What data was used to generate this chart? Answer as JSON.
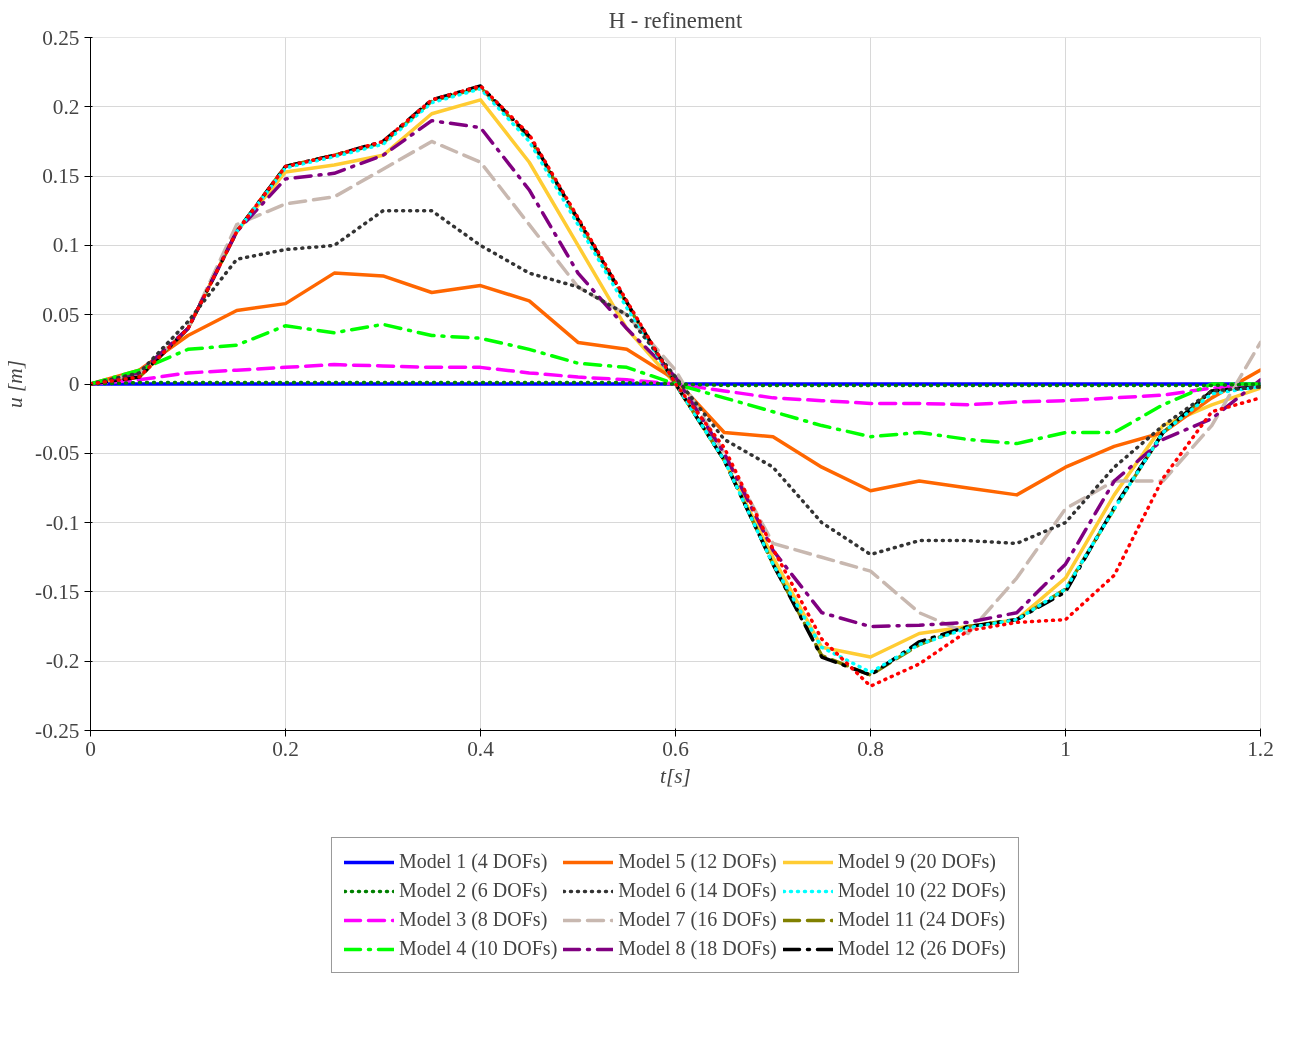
{
  "chart_data": {
    "type": "line",
    "title": "H - refinement",
    "xlabel": "t[s]",
    "ylabel": "u [m]",
    "x": [
      0,
      0.05,
      0.1,
      0.15,
      0.2,
      0.25,
      0.3,
      0.35,
      0.4,
      0.45,
      0.5,
      0.55,
      0.6,
      0.65,
      0.7,
      0.75,
      0.8,
      0.85,
      0.9,
      0.95,
      1.0,
      1.05,
      1.1,
      1.15,
      1.2
    ],
    "xlim": [
      0,
      1.2
    ],
    "xticks": [
      0,
      0.2,
      0.4,
      0.6,
      0.8,
      1,
      1.2
    ],
    "ylim": [
      -0.25,
      0.25
    ],
    "yticks": [
      -0.25,
      -0.2,
      -0.15,
      -0.1,
      -0.05,
      0,
      0.05,
      0.1,
      0.15,
      0.2,
      0.25
    ],
    "grid": true,
    "legend": "bottom",
    "marker": "none",
    "series": [
      {
        "color": "#ff0000",
        "line_style": "dotted",
        "values": [
          0,
          0.005,
          0.04,
          0.11,
          0.157,
          0.165,
          0.175,
          0.205,
          0.215,
          0.18,
          0.12,
          0.06,
          0,
          -0.046,
          -0.119,
          -0.184,
          -0.218,
          -0.202,
          -0.178,
          -0.172,
          -0.17,
          -0.138,
          -0.068,
          -0.02,
          -0.01
        ]
      },
      {
        "name": "Model 1 (4 DOFs)",
        "color": "#0000ff",
        "line_style": "solid",
        "values": [
          0,
          0,
          0,
          0,
          0,
          0,
          0,
          0,
          0,
          0,
          0,
          0,
          0,
          0,
          0,
          0,
          0,
          0,
          0,
          0,
          0,
          0,
          0,
          0,
          0
        ]
      },
      {
        "name": "Model 2 (6 DOFs)",
        "color": "#008000",
        "line_style": "dotted",
        "values": [
          0,
          0.001,
          0.001,
          0.001,
          0.001,
          0.001,
          0.001,
          0.001,
          0.001,
          0.001,
          0.001,
          0.001,
          0,
          -0.001,
          -0.001,
          -0.001,
          -0.001,
          -0.001,
          -0.001,
          -0.001,
          -0.001,
          -0.001,
          -0.001,
          -0.001,
          0
        ]
      },
      {
        "name": "Model 3 (8 DOFs)",
        "color": "#ff00ff",
        "line_style": "dashed",
        "values": [
          0,
          0.003,
          0.008,
          0.01,
          0.012,
          0.014,
          0.013,
          0.012,
          0.012,
          0.008,
          0.005,
          0.003,
          0,
          -0.005,
          -0.01,
          -0.012,
          -0.014,
          -0.014,
          -0.015,
          -0.013,
          -0.012,
          -0.01,
          -0.008,
          -0.003,
          0
        ]
      },
      {
        "name": "Model 4 (10 DOFs)",
        "color": "#00ff00",
        "line_style": "dashdot",
        "values": [
          0,
          0.01,
          0.025,
          0.028,
          0.042,
          0.037,
          0.043,
          0.035,
          0.033,
          0.025,
          0.015,
          0.012,
          0,
          -0.01,
          -0.02,
          -0.03,
          -0.038,
          -0.035,
          -0.04,
          -0.043,
          -0.035,
          -0.035,
          -0.015,
          0,
          0
        ]
      },
      {
        "name": "Model 5 (12 DOFs)",
        "color": "#ff6600",
        "line_style": "solid",
        "values": [
          0,
          0.01,
          0.035,
          0.053,
          0.058,
          0.08,
          0.078,
          0.066,
          0.071,
          0.06,
          0.03,
          0.025,
          0.003,
          -0.035,
          -0.038,
          -0.06,
          -0.077,
          -0.07,
          -0.075,
          -0.08,
          -0.06,
          -0.045,
          -0.035,
          -0.01,
          0.01
        ]
      },
      {
        "name": "Model 6 (14 DOFs)",
        "color": "#333333",
        "line_style": "dotted",
        "values": [
          0,
          0.008,
          0.045,
          0.09,
          0.097,
          0.1,
          0.125,
          0.125,
          0.1,
          0.08,
          0.07,
          0.05,
          0.005,
          -0.04,
          -0.06,
          -0.1,
          -0.123,
          -0.113,
          -0.113,
          -0.115,
          -0.1,
          -0.06,
          -0.03,
          -0.005,
          -0.002
        ]
      },
      {
        "name": "Model 7 (16 DOFs)",
        "color": "#c8b8b0",
        "line_style": "dashed",
        "values": [
          0,
          0.008,
          0.04,
          0.115,
          0.13,
          0.135,
          0.155,
          0.175,
          0.16,
          0.115,
          0.07,
          0.05,
          0.01,
          -0.05,
          -0.115,
          -0.125,
          -0.135,
          -0.165,
          -0.18,
          -0.14,
          -0.09,
          -0.07,
          -0.07,
          -0.03,
          0.03
        ]
      },
      {
        "name": "Model 8 (18 DOFs)",
        "color": "#800080",
        "line_style": "dashdot",
        "values": [
          0,
          0.008,
          0.04,
          0.11,
          0.148,
          0.152,
          0.165,
          0.19,
          0.185,
          0.14,
          0.08,
          0.04,
          0.005,
          -0.05,
          -0.12,
          -0.165,
          -0.175,
          -0.174,
          -0.172,
          -0.165,
          -0.13,
          -0.07,
          -0.04,
          -0.025,
          0.003
        ]
      },
      {
        "name": "Model 9 (20 DOFs)",
        "color": "#ffcc33",
        "line_style": "solid",
        "values": [
          0,
          0.005,
          0.04,
          0.11,
          0.153,
          0.158,
          0.165,
          0.195,
          0.205,
          0.16,
          0.1,
          0.04,
          0,
          -0.055,
          -0.125,
          -0.19,
          -0.197,
          -0.18,
          -0.175,
          -0.17,
          -0.14,
          -0.08,
          -0.03,
          -0.015,
          -0.003
        ]
      },
      {
        "name": "Model 10 (22 DOFs)",
        "color": "#00ffff",
        "line_style": "dotted",
        "values": [
          null,
          null,
          null,
          0.11,
          0.156,
          0.164,
          0.173,
          0.203,
          0.213,
          0.175,
          0.115,
          0.055,
          0,
          -0.055,
          -0.13,
          -0.19,
          -0.208,
          -0.188,
          -0.176,
          -0.17,
          -0.148,
          -0.09,
          -0.035,
          -0.007,
          -0.002
        ]
      },
      {
        "name": "Model 11 (24 DOFs)",
        "color": "#808000",
        "line_style": "dashed",
        "values": [
          0,
          0.005,
          0.04,
          0.11,
          0.157,
          0.165,
          0.174,
          0.204,
          0.214,
          0.178,
          0.118,
          0.058,
          0,
          -0.055,
          -0.13,
          -0.196,
          -0.21,
          -0.188,
          -0.175,
          -0.17,
          -0.148,
          -0.09,
          -0.035,
          -0.005,
          -0.002
        ]
      },
      {
        "name": "Model 12 (26 DOFs)",
        "color": "#000000",
        "line_style": "dashdot",
        "values": [
          0,
          0.005,
          0.04,
          0.11,
          0.157,
          0.165,
          0.175,
          0.205,
          0.215,
          0.179,
          0.119,
          0.059,
          0,
          -0.055,
          -0.13,
          -0.197,
          -0.21,
          -0.186,
          -0.175,
          -0.17,
          -0.15,
          -0.089,
          -0.035,
          -0.005,
          -0.002
        ]
      }
    ]
  }
}
